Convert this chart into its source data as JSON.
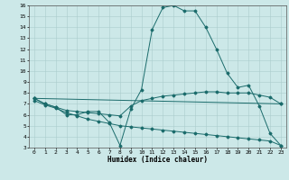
{
  "xlabel": "Humidex (Indice chaleur)",
  "bg_color": "#cce8e8",
  "grid_color": "#aacccc",
  "line_color": "#1a6b6b",
  "xlim": [
    -0.5,
    23.5
  ],
  "ylim": [
    3,
    16
  ],
  "yticks": [
    3,
    4,
    5,
    6,
    7,
    8,
    9,
    10,
    11,
    12,
    13,
    14,
    15,
    16
  ],
  "xticks": [
    0,
    1,
    2,
    3,
    4,
    5,
    6,
    7,
    8,
    9,
    10,
    11,
    12,
    13,
    14,
    15,
    16,
    17,
    18,
    19,
    20,
    21,
    22,
    23
  ],
  "lines": [
    {
      "x": [
        0,
        1,
        2,
        3,
        4,
        5,
        6,
        7,
        8,
        9,
        10,
        11,
        12,
        13,
        14,
        15,
        16,
        17,
        18,
        19,
        20,
        21,
        22,
        23
      ],
      "y": [
        7.5,
        7.0,
        6.7,
        6.0,
        6.0,
        6.3,
        6.3,
        5.3,
        3.2,
        6.5,
        8.3,
        13.8,
        15.8,
        16.0,
        15.5,
        15.5,
        14.0,
        12.0,
        9.8,
        8.5,
        8.7,
        6.8,
        4.3,
        3.2
      ]
    },
    {
      "x": [
        0,
        1,
        2,
        3,
        4,
        5,
        6,
        7,
        8,
        9,
        10,
        11,
        12,
        13,
        14,
        15,
        16,
        17,
        18,
        19,
        20,
        21,
        22,
        23
      ],
      "y": [
        7.5,
        7.0,
        6.7,
        6.4,
        6.3,
        6.2,
        6.1,
        6.0,
        5.9,
        6.8,
        7.3,
        7.5,
        7.7,
        7.8,
        7.9,
        8.0,
        8.1,
        8.1,
        8.0,
        8.0,
        8.0,
        7.8,
        7.6,
        7.0
      ]
    },
    {
      "x": [
        0,
        23
      ],
      "y": [
        7.5,
        7.0
      ]
    },
    {
      "x": [
        0,
        1,
        2,
        3,
        4,
        5,
        6,
        7,
        8,
        9,
        10,
        11,
        12,
        13,
        14,
        15,
        16,
        17,
        18,
        19,
        20,
        21,
        22,
        23
      ],
      "y": [
        7.3,
        6.9,
        6.6,
        6.2,
        5.9,
        5.6,
        5.4,
        5.2,
        5.0,
        4.9,
        4.8,
        4.7,
        4.6,
        4.5,
        4.4,
        4.3,
        4.2,
        4.1,
        4.0,
        3.9,
        3.8,
        3.7,
        3.6,
        3.2
      ]
    }
  ]
}
